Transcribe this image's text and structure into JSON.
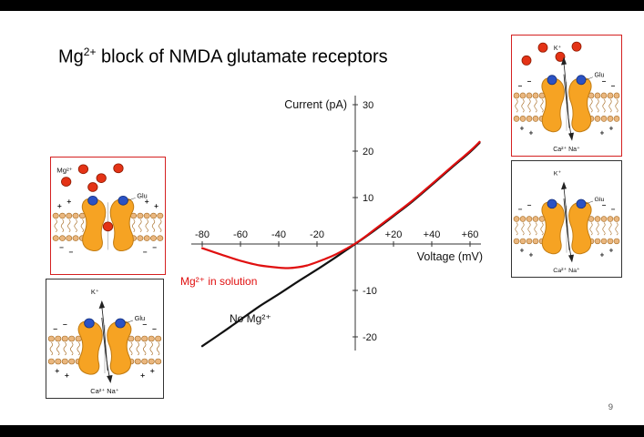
{
  "title": {
    "base": "Mg",
    "sup": "2+",
    "rest": " block of NMDA glutamate receptors"
  },
  "page_number": "9",
  "chart_data": {
    "type": "line",
    "title": "",
    "xlabel": "Voltage (mV)",
    "ylabel": "Current (pA)",
    "xlim": [
      -80,
      65
    ],
    "ylim": [
      -22,
      30
    ],
    "grid": false,
    "legend_position": "inline-labels",
    "xticks": [
      -80,
      -60,
      -40,
      -20,
      20,
      40,
      60
    ],
    "xtick_labels": [
      "-80",
      "-60",
      "-40",
      "-20",
      "+20",
      "+40",
      "+60"
    ],
    "yticks": [
      30,
      20,
      10,
      -10,
      -20
    ],
    "ytick_labels": [
      "30",
      "20",
      "10",
      "-10",
      "-20"
    ],
    "series": [
      {
        "name": "No Mg²⁺",
        "color": "#111111",
        "points": [
          [
            -80,
            -22
          ],
          [
            -70,
            -19.2
          ],
          [
            -60,
            -16.3
          ],
          [
            -50,
            -13.4
          ],
          [
            -40,
            -10.8
          ],
          [
            -30,
            -8.1
          ],
          [
            -20,
            -5.5
          ],
          [
            -10,
            -2.8
          ],
          [
            0,
            0
          ],
          [
            10,
            2.9
          ],
          [
            20,
            6
          ],
          [
            30,
            9.2
          ],
          [
            40,
            12.7
          ],
          [
            50,
            16.3
          ],
          [
            60,
            19.8
          ],
          [
            65,
            21.8
          ]
        ]
      },
      {
        "name": "Mg²⁺ in solution",
        "color": "#e01010",
        "points": [
          [
            -80,
            -0.9
          ],
          [
            -70,
            -2.3
          ],
          [
            -60,
            -3.6
          ],
          [
            -50,
            -4.6
          ],
          [
            -40,
            -5.1
          ],
          [
            -35,
            -5.2
          ],
          [
            -30,
            -5.0
          ],
          [
            -25,
            -4.6
          ],
          [
            -20,
            -3.9
          ],
          [
            -15,
            -3.1
          ],
          [
            -10,
            -2.2
          ],
          [
            -5,
            -1.1
          ],
          [
            0,
            0.1
          ],
          [
            5,
            1.5
          ],
          [
            10,
            3.1
          ],
          [
            20,
            6.2
          ],
          [
            30,
            9.4
          ],
          [
            40,
            12.9
          ],
          [
            50,
            16.5
          ],
          [
            60,
            20
          ],
          [
            65,
            22
          ]
        ]
      }
    ]
  },
  "diagrams": [
    {
      "name": "mg-blocked-resting",
      "border_color": "#d42020",
      "corner_label": "Mg²⁺",
      "labels": {
        "glu": "Glu",
        "k": "",
        "ca_na": ""
      },
      "mg_free_ions": 5,
      "pore_blocked": true,
      "show_flow": false,
      "outer_charge": "+",
      "inner_charge": "−"
    },
    {
      "name": "open-channel-no-mg-left",
      "border_color": "#333333",
      "corner_label": "",
      "labels": {
        "glu": "Glu",
        "k": "K⁺",
        "ca_na": "Ca²⁺ Na⁺"
      },
      "mg_free_ions": 0,
      "pore_blocked": false,
      "show_flow": true,
      "outer_charge": "−",
      "inner_charge": "+"
    },
    {
      "name": "mg-expelled-depolarized",
      "border_color": "#d42020",
      "corner_label": "",
      "labels": {
        "glu": "Glu",
        "k": "K⁺",
        "ca_na": "Ca²⁺ Na⁺"
      },
      "mg_free_ions": 4,
      "pore_blocked": false,
      "show_flow": true,
      "outer_charge": "−",
      "inner_charge": "+"
    },
    {
      "name": "open-channel-no-mg-right",
      "border_color": "#333333",
      "corner_label": "",
      "labels": {
        "glu": "Glu",
        "k": "K⁺",
        "ca_na": "Ca²⁺ Na⁺"
      },
      "mg_free_ions": 0,
      "pore_blocked": false,
      "show_flow": true,
      "outer_charge": "−",
      "inner_charge": "+"
    }
  ]
}
